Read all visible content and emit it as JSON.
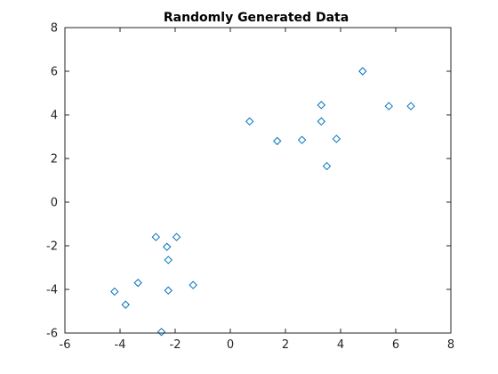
{
  "chart_data": {
    "type": "scatter",
    "title": "Randomly Generated Data",
    "xlabel": "",
    "ylabel": "",
    "xlim": [
      -6,
      8
    ],
    "ylim": [
      -6,
      8
    ],
    "x_ticks": [
      -6,
      -4,
      -2,
      0,
      2,
      4,
      6,
      8
    ],
    "y_ticks": [
      -6,
      -4,
      -2,
      0,
      2,
      4,
      6,
      8
    ],
    "grid": false,
    "marker": "diamond",
    "marker_color": "#0072bd",
    "axis_color": "#262626",
    "points": [
      {
        "x": 0.7,
        "y": 3.7
      },
      {
        "x": 1.7,
        "y": 2.8
      },
      {
        "x": 2.6,
        "y": 2.85
      },
      {
        "x": 3.3,
        "y": 4.45
      },
      {
        "x": 3.3,
        "y": 3.7
      },
      {
        "x": 3.5,
        "y": 1.65
      },
      {
        "x": 3.85,
        "y": 2.9
      },
      {
        "x": 4.8,
        "y": 6.0
      },
      {
        "x": 5.75,
        "y": 4.4
      },
      {
        "x": 6.55,
        "y": 4.4
      },
      {
        "x": -4.2,
        "y": -4.1
      },
      {
        "x": -3.8,
        "y": -4.7
      },
      {
        "x": -3.35,
        "y": -3.7
      },
      {
        "x": -2.7,
        "y": -1.6
      },
      {
        "x": -2.5,
        "y": -5.95
      },
      {
        "x": -2.3,
        "y": -2.05
      },
      {
        "x": -2.25,
        "y": -2.65
      },
      {
        "x": -2.25,
        "y": -4.05
      },
      {
        "x": -1.95,
        "y": -1.6
      },
      {
        "x": -1.35,
        "y": -3.8
      }
    ]
  }
}
